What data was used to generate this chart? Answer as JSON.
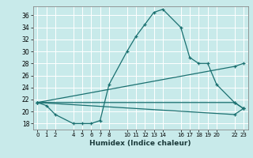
{
  "title": "",
  "xlabel": "Humidex (Indice chaleur)",
  "bg_color": "#c8eaea",
  "grid_color": "#ffffff",
  "line_color": "#1a7070",
  "xlim": [
    -0.5,
    23.5
  ],
  "ylim": [
    17,
    37.5
  ],
  "xticks": [
    0,
    1,
    2,
    4,
    5,
    6,
    7,
    8,
    10,
    11,
    12,
    13,
    14,
    16,
    17,
    18,
    19,
    20,
    22,
    23
  ],
  "yticks": [
    18,
    20,
    22,
    24,
    26,
    28,
    30,
    32,
    34,
    36
  ],
  "series": [
    {
      "x": [
        0,
        1,
        2,
        4,
        5,
        6,
        7,
        8,
        10,
        11,
        12,
        13,
        14,
        16,
        17,
        18,
        19,
        20,
        22,
        23
      ],
      "y": [
        21.5,
        21.0,
        19.5,
        18.0,
        18.0,
        18.0,
        18.5,
        24.5,
        30.0,
        32.5,
        34.5,
        36.5,
        37.0,
        34.0,
        29.0,
        28.0,
        28.0,
        24.5,
        21.5,
        20.5
      ]
    },
    {
      "x": [
        0,
        22,
        23
      ],
      "y": [
        21.5,
        27.5,
        28.0
      ]
    },
    {
      "x": [
        0,
        22,
        23
      ],
      "y": [
        21.5,
        21.5,
        20.5
      ]
    },
    {
      "x": [
        0,
        22,
        23
      ],
      "y": [
        21.5,
        19.5,
        20.5
      ]
    }
  ]
}
